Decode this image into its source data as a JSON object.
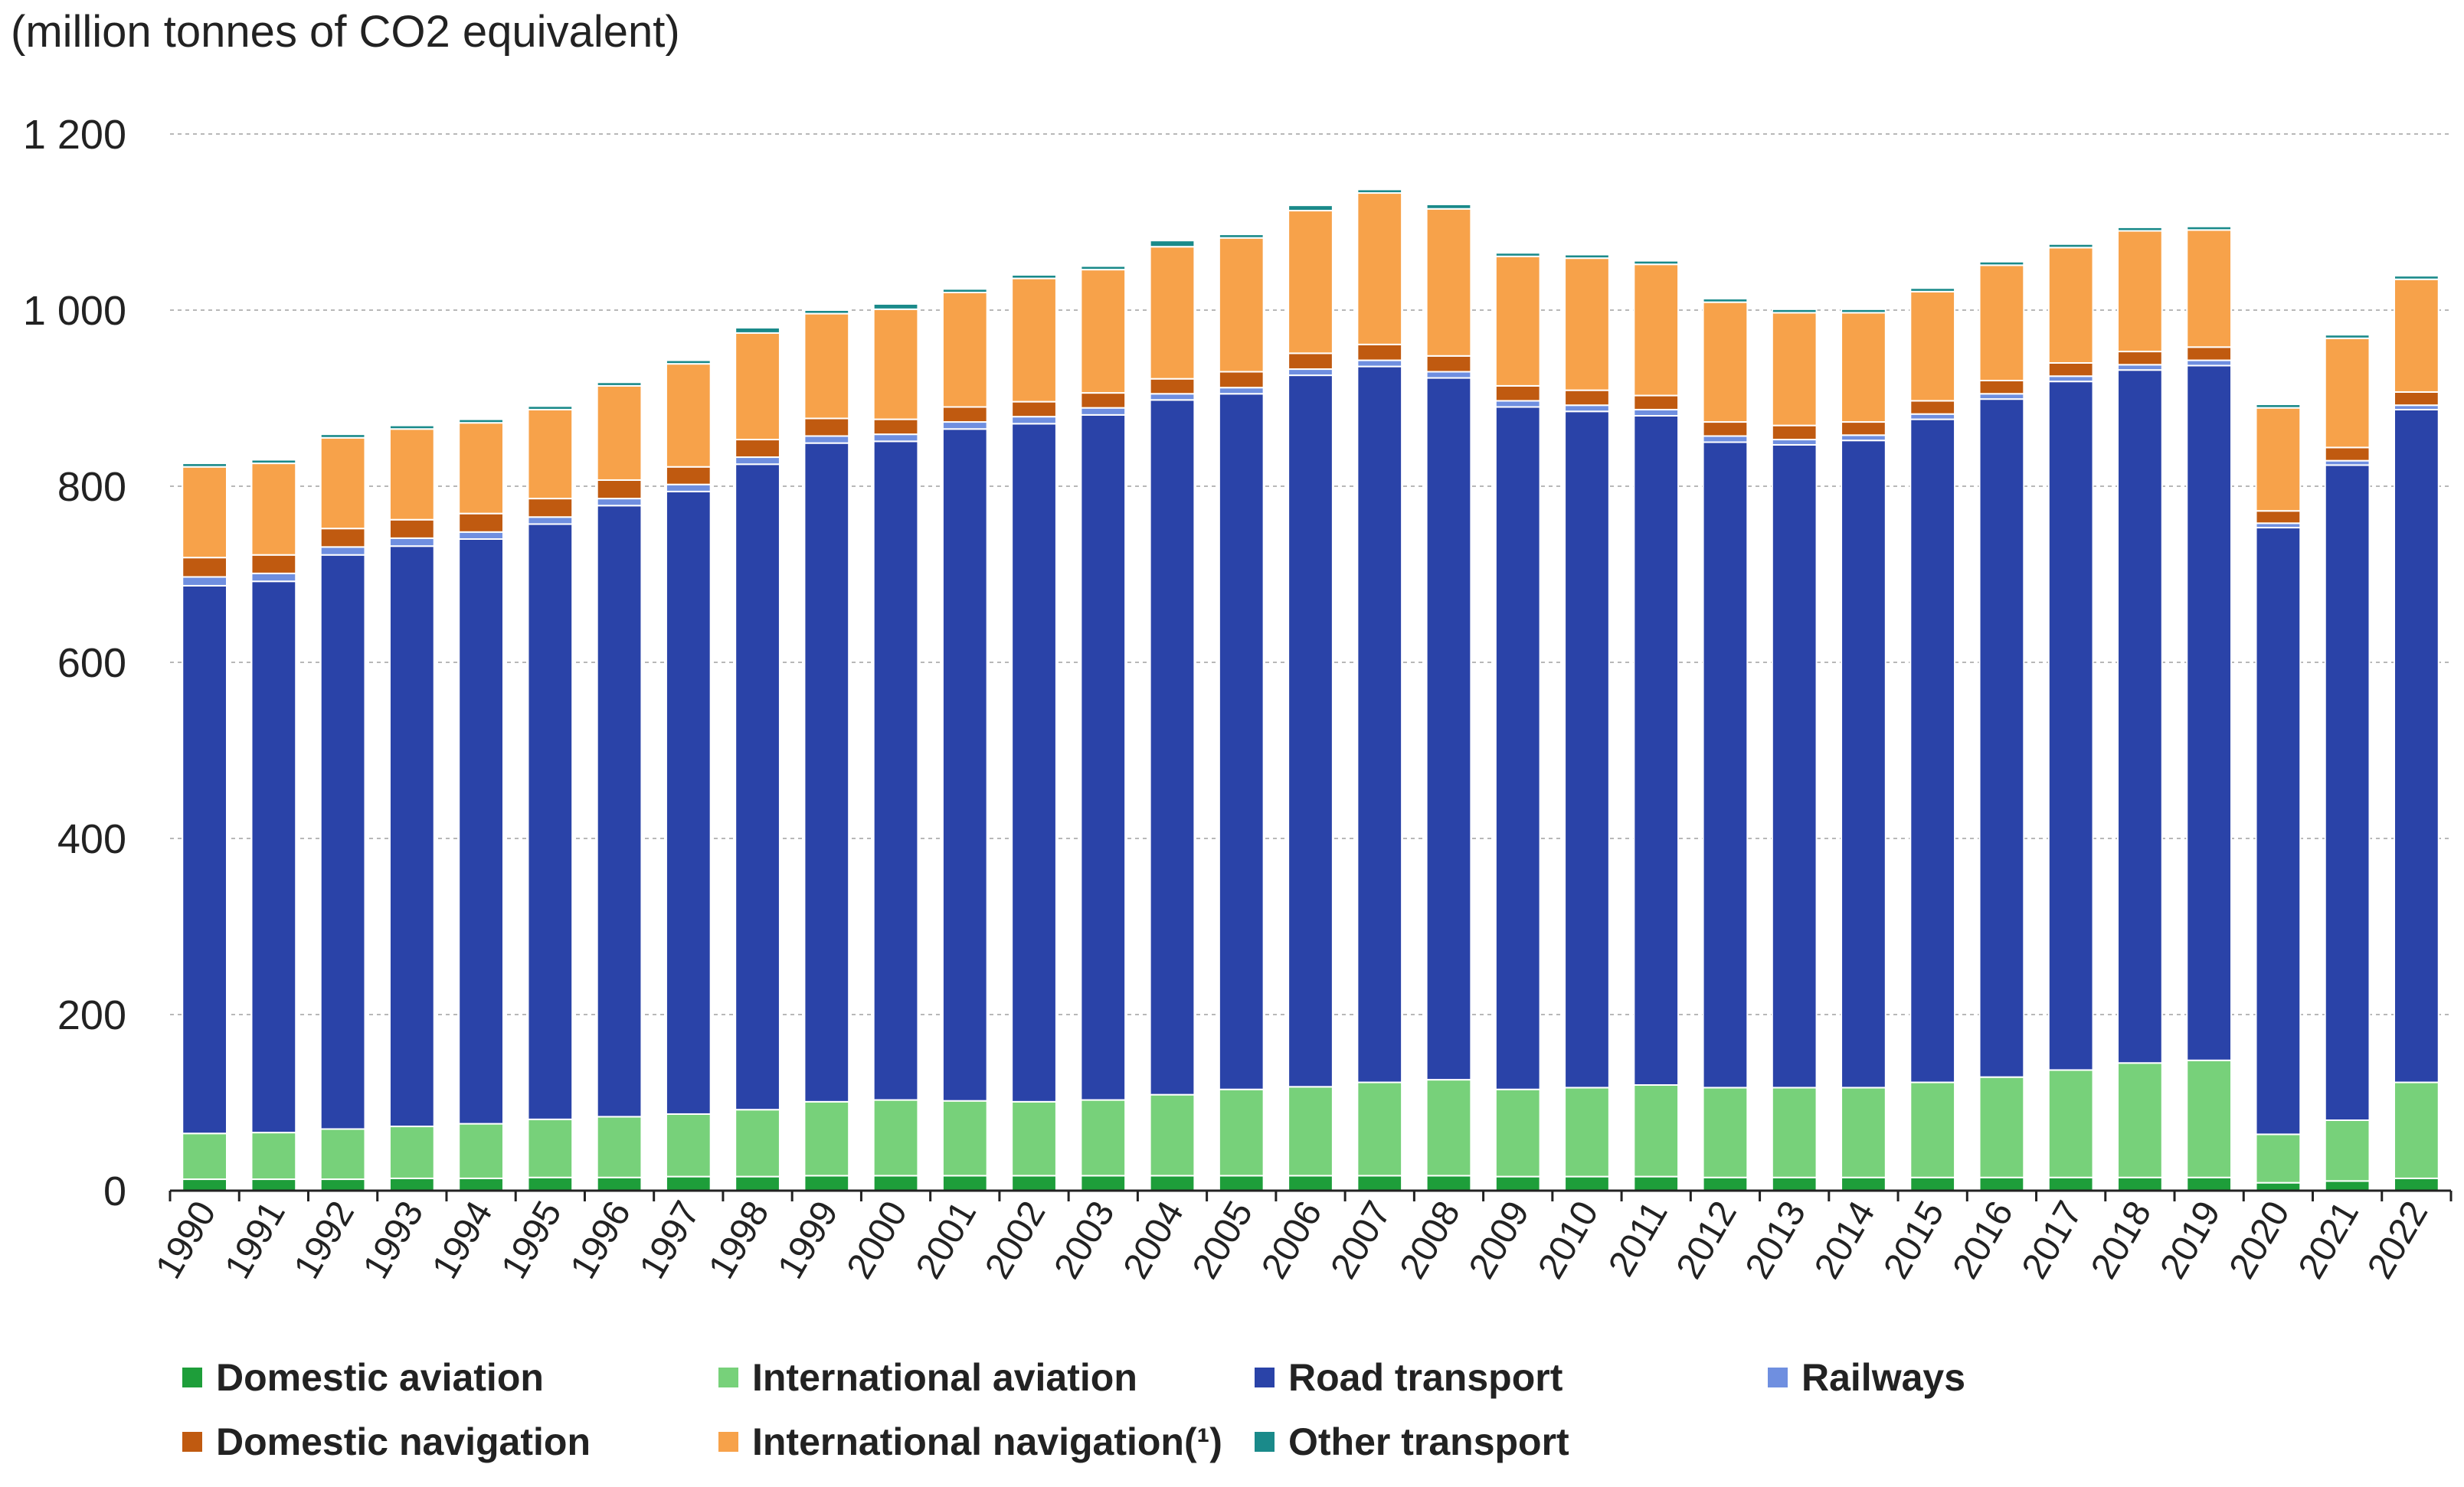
{
  "chart_data": {
    "type": "bar",
    "stacked": true,
    "unit_label": "(million tonnes of CO2 equivalent)",
    "ylim": [
      0,
      1200
    ],
    "yticks": [
      0,
      200,
      400,
      600,
      800,
      1000,
      1200
    ],
    "ytick_labels": [
      "0",
      "200",
      "400",
      "600",
      "800",
      "1 000",
      "1 200"
    ],
    "grid": true,
    "legend_position": "bottom",
    "categories": [
      "1990",
      "1991",
      "1992",
      "1993",
      "1994",
      "1995",
      "1996",
      "1997",
      "1998",
      "1999",
      "2000",
      "2001",
      "2002",
      "2003",
      "2004",
      "2005",
      "2006",
      "2007",
      "2008",
      "2009",
      "2010",
      "2011",
      "2012",
      "2013",
      "2014",
      "2015",
      "2016",
      "2017",
      "2018",
      "2019",
      "2020",
      "2021",
      "2022"
    ],
    "series": [
      {
        "name": "Domestic aviation",
        "color": "#1e9e3a",
        "values": [
          13,
          13,
          13,
          14,
          14,
          15,
          15,
          16,
          16,
          17,
          17,
          17,
          17,
          17,
          17,
          17,
          17,
          17,
          17,
          16,
          16,
          16,
          15,
          15,
          15,
          15,
          15,
          15,
          15,
          15,
          9,
          11,
          14
        ]
      },
      {
        "name": "International aviation",
        "color": "#77d17a",
        "values": [
          52,
          53,
          57,
          59,
          62,
          66,
          69,
          71,
          76,
          84,
          86,
          85,
          84,
          86,
          92,
          98,
          101,
          106,
          109,
          99,
          101,
          104,
          102,
          102,
          102,
          108,
          114,
          122,
          130,
          133,
          55,
          69,
          109
        ]
      },
      {
        "name": "Road transport",
        "color": "#2a43a8",
        "values": [
          622,
          626,
          652,
          659,
          664,
          676,
          694,
          707,
          733,
          748,
          748,
          763,
          770,
          778,
          789,
          790,
          808,
          813,
          797,
          775,
          768,
          760,
          733,
          730,
          735,
          753,
          770,
          782,
          787,
          789,
          689,
          744,
          764
        ]
      },
      {
        "name": "Railways",
        "color": "#6f8fe0",
        "values": [
          10,
          9,
          9,
          9,
          8,
          8,
          8,
          8,
          8,
          8,
          8,
          8,
          8,
          8,
          7,
          7,
          7,
          7,
          7,
          7,
          7,
          7,
          7,
          6,
          6,
          6,
          6,
          6,
          6,
          6,
          5,
          5,
          5
        ]
      },
      {
        "name": "Domestic navigation",
        "color": "#c05a10",
        "values": [
          22,
          21,
          21,
          21,
          21,
          21,
          21,
          20,
          20,
          20,
          17,
          17,
          17,
          17,
          17,
          18,
          18,
          18,
          18,
          17,
          17,
          16,
          16,
          16,
          15,
          15,
          15,
          15,
          15,
          15,
          14,
          15,
          15
        ]
      },
      {
        "name": "International navigation(¹)",
        "color": "#f7a24a",
        "values": [
          103,
          104,
          103,
          103,
          103,
          101,
          107,
          117,
          121,
          119,
          125,
          130,
          140,
          140,
          150,
          152,
          162,
          172,
          167,
          147,
          150,
          149,
          136,
          128,
          124,
          124,
          131,
          131,
          137,
          133,
          117,
          124,
          128
        ]
      },
      {
        "name": "Other transport",
        "color": "#1a8a8a",
        "values": [
          4,
          4,
          4,
          4,
          4,
          4,
          4,
          4,
          6,
          4,
          6,
          4,
          4,
          4,
          7,
          4,
          6,
          4,
          5,
          4,
          4,
          4,
          4,
          4,
          4,
          4,
          4,
          4,
          4,
          4,
          4,
          4,
          4
        ]
      }
    ]
  }
}
